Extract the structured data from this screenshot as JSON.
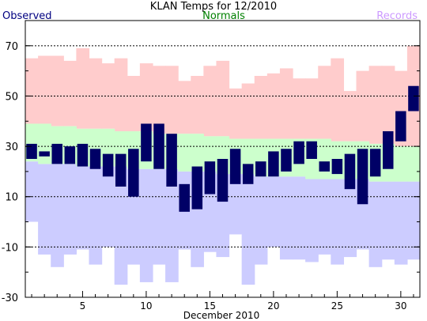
{
  "chart_data": {
    "type": "bar",
    "title": "KLAN Temps for 12/2010",
    "xlabel": "December 2010",
    "ylabel": "",
    "legend": {
      "observed": "Observed",
      "normals": "Normals",
      "records": "Records"
    },
    "legend_placement": "top",
    "grid": true,
    "colors": {
      "observed": "#000066",
      "observed_label": "#000080",
      "normals": "#ccffcc",
      "normals_label": "#008000",
      "record_high": "#ffcccc",
      "record_low": "#ccccff",
      "records_label": "#cc99ff"
    },
    "ylim": [
      -30,
      80
    ],
    "yticks": [
      -30,
      -10,
      10,
      30,
      50,
      70
    ],
    "xlim": [
      0.5,
      31.5
    ],
    "xticks": [
      5,
      10,
      15,
      20,
      25,
      30
    ],
    "days": [
      1,
      2,
      3,
      4,
      5,
      6,
      7,
      8,
      9,
      10,
      11,
      12,
      13,
      14,
      15,
      16,
      17,
      18,
      19,
      20,
      21,
      22,
      23,
      24,
      25,
      26,
      27,
      28,
      29,
      30,
      31
    ],
    "series": [
      {
        "name": "Observed",
        "high": [
          31,
          28,
          31,
          30,
          31,
          29,
          27,
          27,
          29,
          39,
          39,
          35,
          15,
          22,
          24,
          25,
          29,
          23,
          24,
          28,
          29,
          32,
          32,
          24,
          25,
          27,
          29,
          29,
          36,
          44,
          54
        ],
        "low": [
          25,
          26,
          23,
          23,
          22,
          21,
          18,
          14,
          10,
          24,
          21,
          14,
          4,
          5,
          11,
          8,
          15,
          15,
          18,
          18,
          20,
          23,
          25,
          20,
          19,
          13,
          7,
          18,
          21,
          32,
          44
        ]
      },
      {
        "name": "Normals",
        "high": [
          39,
          39,
          38,
          38,
          37,
          37,
          37,
          36,
          36,
          36,
          35,
          35,
          35,
          35,
          34,
          34,
          33,
          33,
          33,
          33,
          33,
          33,
          33,
          33,
          32,
          32,
          32,
          31,
          31,
          30,
          30
        ],
        "low": [
          24,
          23,
          23,
          23,
          22,
          22,
          22,
          22,
          21,
          21,
          21,
          21,
          20,
          20,
          20,
          19,
          19,
          19,
          18,
          18,
          18,
          18,
          17,
          17,
          17,
          17,
          17,
          16,
          16,
          16,
          16
        ]
      },
      {
        "name": "Records",
        "high": [
          65,
          66,
          66,
          64,
          69,
          65,
          63,
          65,
          58,
          63,
          62,
          62,
          56,
          58,
          62,
          64,
          53,
          55,
          58,
          59,
          61,
          57,
          57,
          62,
          65,
          52,
          60,
          62,
          62,
          60,
          70
        ],
        "low": [
          0,
          -13,
          -18,
          -13,
          -11,
          -17,
          -10,
          -25,
          -17,
          -24,
          -17,
          -24,
          -11,
          -18,
          -12,
          -14,
          -5,
          -25,
          -17,
          -10,
          -15,
          -15,
          -16,
          -13,
          -17,
          -14,
          -11,
          -18,
          -15,
          -17,
          -15
        ]
      }
    ]
  }
}
